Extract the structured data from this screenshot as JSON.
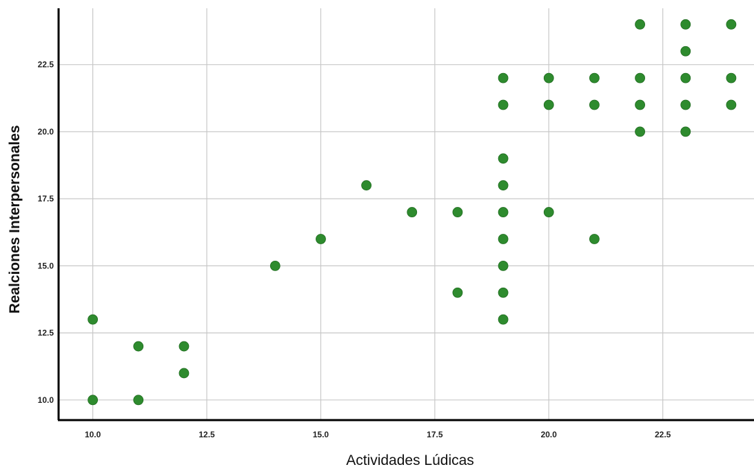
{
  "chart_data": {
    "type": "scatter",
    "title": "",
    "xlabel": "Actividades Lúdicas",
    "ylabel": "Realciones Interpersonales",
    "xlim": [
      9.25,
      24.5
    ],
    "ylim": [
      9.25,
      24.6
    ],
    "x_ticks": [
      "10.0",
      "12.5",
      "15.0",
      "17.5",
      "20.0",
      "22.5"
    ],
    "y_ticks": [
      "10.0",
      "12.5",
      "15.0",
      "17.5",
      "20.0",
      "22.5"
    ],
    "grid": true,
    "legend": "none",
    "point_color": "#2e8b2e",
    "points": [
      {
        "x": 10,
        "y": 13
      },
      {
        "x": 10,
        "y": 10
      },
      {
        "x": 11,
        "y": 12
      },
      {
        "x": 11,
        "y": 10
      },
      {
        "x": 12,
        "y": 12
      },
      {
        "x": 12,
        "y": 11
      },
      {
        "x": 14,
        "y": 15
      },
      {
        "x": 15,
        "y": 16
      },
      {
        "x": 16,
        "y": 18
      },
      {
        "x": 17,
        "y": 17
      },
      {
        "x": 18,
        "y": 17
      },
      {
        "x": 18,
        "y": 14
      },
      {
        "x": 19,
        "y": 22
      },
      {
        "x": 19,
        "y": 21
      },
      {
        "x": 19,
        "y": 19
      },
      {
        "x": 19,
        "y": 18
      },
      {
        "x": 19,
        "y": 17
      },
      {
        "x": 19,
        "y": 16
      },
      {
        "x": 19,
        "y": 15
      },
      {
        "x": 19,
        "y": 14
      },
      {
        "x": 19,
        "y": 13
      },
      {
        "x": 20,
        "y": 22
      },
      {
        "x": 20,
        "y": 21
      },
      {
        "x": 20,
        "y": 17
      },
      {
        "x": 21,
        "y": 22
      },
      {
        "x": 21,
        "y": 21
      },
      {
        "x": 21,
        "y": 16
      },
      {
        "x": 22,
        "y": 24
      },
      {
        "x": 22,
        "y": 22
      },
      {
        "x": 22,
        "y": 21
      },
      {
        "x": 22,
        "y": 20
      },
      {
        "x": 23,
        "y": 24
      },
      {
        "x": 23,
        "y": 23
      },
      {
        "x": 23,
        "y": 22
      },
      {
        "x": 23,
        "y": 21
      },
      {
        "x": 23,
        "y": 20
      },
      {
        "x": 24,
        "y": 24
      },
      {
        "x": 24,
        "y": 22
      },
      {
        "x": 24,
        "y": 21
      }
    ]
  }
}
